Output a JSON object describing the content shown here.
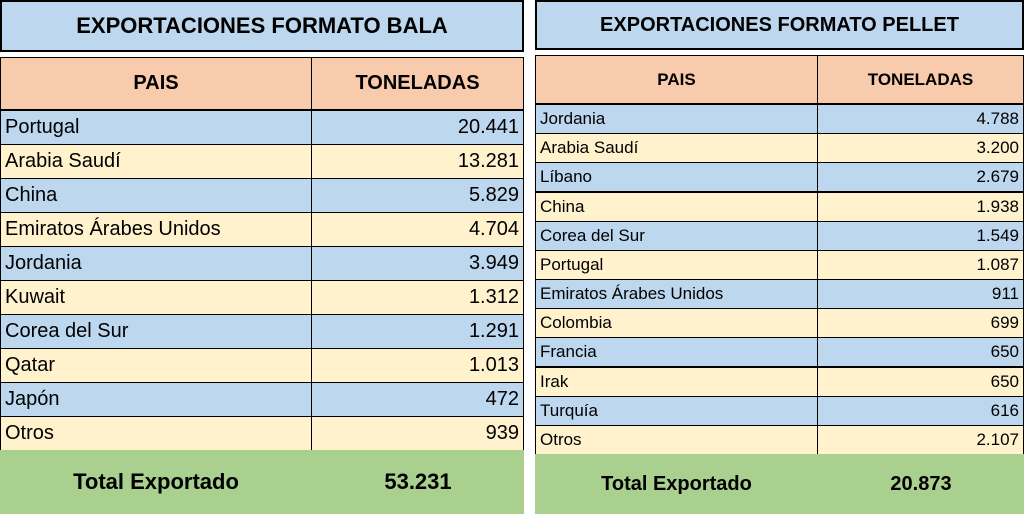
{
  "tables": [
    {
      "title": "EXPORTACIONES FORMATO BALA",
      "headers": [
        "PAIS",
        "TONELADAS"
      ],
      "rows": [
        [
          "Portugal",
          "20.441"
        ],
        [
          "Arabia Saudí",
          "13.281"
        ],
        [
          "China",
          "5.829"
        ],
        [
          "Emiratos Árabes Unidos",
          "4.704"
        ],
        [
          "Jordania",
          "3.949"
        ],
        [
          "Kuwait",
          "1.312"
        ],
        [
          "Corea del Sur",
          "1.291"
        ],
        [
          "Qatar",
          "1.013"
        ],
        [
          "Japón",
          "472"
        ],
        [
          "Otros",
          "939"
        ]
      ],
      "total": [
        "Total Exportado",
        "53.231"
      ]
    },
    {
      "title": "EXPORTACIONES FORMATO PELLET",
      "headers": [
        "PAIS",
        "TONELADAS"
      ],
      "rows": [
        [
          "Jordania",
          "4.788"
        ],
        [
          "Arabia Saudí",
          "3.200"
        ],
        [
          "Líbano",
          "2.679"
        ],
        [
          "China",
          "1.938"
        ],
        [
          "Corea del Sur",
          "1.549"
        ],
        [
          "Portugal",
          "1.087"
        ],
        [
          "Emiratos Árabes Unidos",
          "911"
        ],
        [
          "Colombia",
          "699"
        ],
        [
          "Francia",
          "650"
        ],
        [
          "Irak",
          "650"
        ],
        [
          "Turquía",
          "616"
        ],
        [
          "Otros",
          "2.107"
        ]
      ],
      "total": [
        "Total Exportado",
        "20.873"
      ]
    }
  ]
}
